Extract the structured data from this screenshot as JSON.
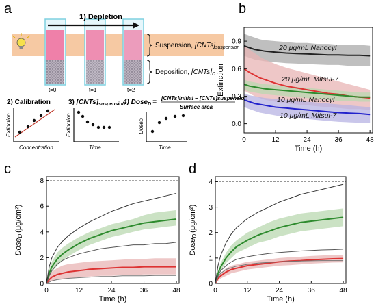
{
  "panels": {
    "a": {
      "letter": "a",
      "depletion_label": "1) Depletion",
      "suspension_label": "Suspension, ",
      "suspension_term": "[CNTs]",
      "suspension_sub": "suspension",
      "deposition_label": "Deposition, ",
      "deposition_term": "[CNTs]",
      "deposition_sub": "D",
      "times": [
        "t=0",
        "t=1",
        "t=2"
      ],
      "calibration_title": "2) Calibration",
      "calibration_ylabel": "Extinction",
      "calibration_xlabel": "Concentration",
      "suspension_plot_prefix": "3) ",
      "suspension_plot_term": "[CNTs]",
      "suspension_plot_sub": "suspension",
      "suspension_plot_ylabel": "Extinction",
      "suspension_plot_xlabel": "Time",
      "dose_title_prefix": "4) Dose",
      "dose_title_sub": "D",
      "dose_eq": "=",
      "dose_numerator": "[CNTs]initial − [CNTs]suspension",
      "dose_denominator": "Surface area",
      "dose_ylabel": "Dose",
      "dose_ylabel_sub": "D",
      "dose_xlabel": "Time",
      "colors": {
        "band": "#f6c9a3",
        "tube_border": "#7fd0e0",
        "suspension": "#f06b9a",
        "deposit": "#8a8090"
      }
    },
    "b": {
      "letter": "b"
    },
    "c": {
      "letter": "c"
    },
    "d": {
      "letter": "d"
    }
  },
  "chart_data": [
    {
      "panel": "b",
      "type": "line",
      "xlabel": "Time (h)",
      "ylabel": "Extinction",
      "xlim": [
        0,
        49
      ],
      "ylim": [
        -0.1,
        1.05
      ],
      "xticks": [
        0,
        12,
        24,
        36,
        48
      ],
      "yticks": [
        0.0,
        0.3,
        0.6,
        0.9
      ],
      "ytick_labels": [
        "0.0",
        "0.3",
        "0.6",
        "0.9"
      ],
      "series": [
        {
          "name": "20 μg/mL Nanocyl",
          "color": "#222222",
          "band_color": "#a9a9a9",
          "x": [
            0,
            2,
            4,
            6,
            8,
            12,
            16,
            20,
            24,
            28,
            32,
            36,
            40,
            44,
            48
          ],
          "y": [
            0.85,
            0.83,
            0.81,
            0.8,
            0.79,
            0.78,
            0.77,
            0.765,
            0.76,
            0.755,
            0.75,
            0.75,
            0.745,
            0.745,
            0.74
          ],
          "lower": [
            0.74,
            0.72,
            0.7,
            0.69,
            0.68,
            0.67,
            0.66,
            0.655,
            0.65,
            0.645,
            0.64,
            0.64,
            0.63,
            0.63,
            0.63
          ],
          "upper": [
            0.98,
            0.96,
            0.94,
            0.92,
            0.91,
            0.9,
            0.89,
            0.88,
            0.88,
            0.87,
            0.87,
            0.86,
            0.86,
            0.86,
            0.85
          ]
        },
        {
          "name": "20 μg/mL Mitsui-7",
          "color": "#dd3333",
          "band_color": "#e8b4b4",
          "x": [
            0,
            2,
            4,
            6,
            8,
            12,
            16,
            20,
            24,
            28,
            32,
            36,
            40,
            44,
            48
          ],
          "y": [
            0.6,
            0.56,
            0.53,
            0.5,
            0.48,
            0.44,
            0.41,
            0.39,
            0.37,
            0.35,
            0.33,
            0.32,
            0.3,
            0.29,
            0.28
          ],
          "lower": [
            0.36,
            0.33,
            0.3,
            0.28,
            0.26,
            0.24,
            0.22,
            0.21,
            0.2,
            0.19,
            0.18,
            0.17,
            0.16,
            0.16,
            0.15
          ],
          "upper": [
            0.86,
            0.81,
            0.77,
            0.73,
            0.7,
            0.65,
            0.61,
            0.58,
            0.55,
            0.52,
            0.49,
            0.46,
            0.43,
            0.4,
            0.37
          ]
        },
        {
          "name": "10 μg/mL Nanocyl",
          "color": "#2e8b2e",
          "band_color": "#b9d8b0",
          "x": [
            0,
            2,
            4,
            6,
            8,
            12,
            16,
            20,
            24,
            28,
            32,
            36,
            40,
            44,
            48
          ],
          "y": [
            0.43,
            0.41,
            0.4,
            0.39,
            0.38,
            0.37,
            0.36,
            0.35,
            0.34,
            0.33,
            0.32,
            0.31,
            0.3,
            0.29,
            0.29
          ],
          "lower": [
            0.37,
            0.35,
            0.34,
            0.33,
            0.32,
            0.31,
            0.3,
            0.29,
            0.28,
            0.27,
            0.26,
            0.25,
            0.25,
            0.24,
            0.24
          ],
          "upper": [
            0.48,
            0.46,
            0.45,
            0.44,
            0.43,
            0.42,
            0.41,
            0.4,
            0.39,
            0.38,
            0.37,
            0.36,
            0.35,
            0.34,
            0.34
          ]
        },
        {
          "name": "10 μg/mL Mitsui-7",
          "color": "#2222cc",
          "band_color": "#b7b3e3",
          "x": [
            0,
            2,
            4,
            6,
            8,
            12,
            16,
            20,
            24,
            28,
            32,
            36,
            40,
            44,
            48
          ],
          "y": [
            0.26,
            0.24,
            0.22,
            0.21,
            0.2,
            0.18,
            0.17,
            0.16,
            0.15,
            0.14,
            0.13,
            0.12,
            0.115,
            0.11,
            0.1
          ],
          "lower": [
            0.18,
            0.16,
            0.14,
            0.12,
            0.11,
            0.09,
            0.07,
            0.06,
            0.05,
            0.04,
            0.03,
            0.02,
            0.015,
            0.01,
            0.005
          ],
          "upper": [
            0.33,
            0.31,
            0.3,
            0.29,
            0.28,
            0.27,
            0.26,
            0.25,
            0.24,
            0.23,
            0.22,
            0.21,
            0.2,
            0.19,
            0.18
          ]
        }
      ]
    },
    {
      "panel": "c",
      "type": "line",
      "xlabel": "Time (h)",
      "ylabel": "Dose",
      "ylabel_sub": "D",
      "ylabel_unit": "(μg/cm²)",
      "xlim": [
        0,
        49
      ],
      "ylim": [
        0,
        8.3
      ],
      "xticks": [
        0,
        12,
        24,
        36,
        48
      ],
      "yticks": [
        0,
        2,
        4,
        6,
        8
      ],
      "dashed_y": 8,
      "series": [
        {
          "color": "#2e8b2e",
          "band_color": "#b9d8b0",
          "x": [
            0,
            1,
            2,
            4,
            6,
            8,
            12,
            16,
            20,
            24,
            28,
            32,
            36,
            40,
            44,
            48
          ],
          "y": [
            0,
            0.8,
            1.3,
            1.9,
            2.3,
            2.6,
            3.1,
            3.5,
            3.8,
            4.1,
            4.3,
            4.5,
            4.7,
            4.8,
            4.9,
            5.0
          ],
          "lower": [
            0,
            0.5,
            0.9,
            1.4,
            1.8,
            2.1,
            2.6,
            3.0,
            3.3,
            3.6,
            3.8,
            4.0,
            4.2,
            4.3,
            4.4,
            4.5
          ],
          "upper": [
            0,
            1.1,
            1.7,
            2.4,
            2.8,
            3.1,
            3.6,
            4.0,
            4.3,
            4.6,
            4.8,
            5.0,
            5.3,
            5.5,
            5.6,
            5.7
          ]
        },
        {
          "color": "#dd3333",
          "band_color": "#e8b4b4",
          "x": [
            0,
            1,
            2,
            4,
            6,
            8,
            12,
            16,
            20,
            24,
            28,
            32,
            36,
            40,
            44,
            48
          ],
          "y": [
            0,
            0.3,
            0.5,
            0.7,
            0.8,
            0.9,
            1.0,
            1.1,
            1.15,
            1.2,
            1.25,
            1.25,
            1.3,
            1.3,
            1.3,
            1.3
          ],
          "lower": [
            0,
            0.1,
            0.2,
            0.3,
            0.35,
            0.4,
            0.5,
            0.55,
            0.6,
            0.6,
            0.65,
            0.65,
            0.7,
            0.7,
            0.7,
            0.7
          ],
          "upper": [
            0,
            0.6,
            0.9,
            1.2,
            1.4,
            1.5,
            1.6,
            1.7,
            1.75,
            1.8,
            1.85,
            1.9,
            1.9,
            1.95,
            1.95,
            1.95
          ]
        },
        {
          "color": "#333333",
          "x": [
            0,
            1,
            2,
            4,
            6,
            8,
            12,
            16,
            20,
            24,
            28,
            32,
            36,
            40,
            44,
            48
          ],
          "y": [
            0,
            1.3,
            2.0,
            2.8,
            3.3,
            3.7,
            4.3,
            4.8,
            5.2,
            5.6,
            5.9,
            6.2,
            6.4,
            6.6,
            6.8,
            7.0
          ]
        },
        {
          "color": "#555555",
          "x": [
            0,
            1,
            2,
            4,
            6,
            8,
            12,
            16,
            20,
            24,
            28,
            32,
            36,
            40,
            44,
            48
          ],
          "y": [
            0,
            0.6,
            1.0,
            1.5,
            1.8,
            2.0,
            2.3,
            2.5,
            2.7,
            2.8,
            2.9,
            3.0,
            3.0,
            3.1,
            3.1,
            3.2
          ]
        },
        {
          "color": "#777777",
          "x": [
            0,
            1,
            2,
            4,
            6,
            8,
            12,
            16,
            20,
            24,
            28,
            32,
            36,
            40,
            44,
            48
          ],
          "y": [
            0,
            0.1,
            0.2,
            0.3,
            0.35,
            0.4,
            0.45,
            0.5,
            0.55,
            0.55,
            0.6,
            0.6,
            0.6,
            0.62,
            0.62,
            0.62
          ]
        }
      ]
    },
    {
      "panel": "d",
      "type": "line",
      "xlabel": "Time (h)",
      "ylabel": "Dose",
      "ylabel_sub": "D",
      "ylabel_unit": "(μg/cm²)",
      "xlim": [
        0,
        49
      ],
      "ylim": [
        0,
        4.2
      ],
      "xticks": [
        0,
        12,
        24,
        36,
        48
      ],
      "yticks": [
        0,
        1,
        2,
        3,
        4
      ],
      "dashed_y": 4,
      "series": [
        {
          "color": "#2e8b2e",
          "band_color": "#b9d8b0",
          "x": [
            0,
            1,
            2,
            4,
            6,
            8,
            12,
            16,
            20,
            24,
            28,
            32,
            36,
            40,
            44,
            48
          ],
          "y": [
            0,
            0.4,
            0.65,
            1.0,
            1.25,
            1.45,
            1.7,
            1.9,
            2.05,
            2.2,
            2.3,
            2.4,
            2.45,
            2.5,
            2.55,
            2.6
          ],
          "lower": [
            0,
            0.3,
            0.5,
            0.8,
            1.0,
            1.2,
            1.4,
            1.6,
            1.7,
            1.85,
            1.95,
            2.05,
            2.1,
            2.15,
            2.2,
            2.25
          ],
          "upper": [
            0,
            0.5,
            0.8,
            1.2,
            1.5,
            1.7,
            2.0,
            2.2,
            2.4,
            2.55,
            2.65,
            2.75,
            2.8,
            2.85,
            2.9,
            2.95
          ]
        },
        {
          "color": "#dd3333",
          "band_color": "#e8b4b4",
          "x": [
            0,
            1,
            2,
            4,
            6,
            8,
            12,
            16,
            20,
            24,
            28,
            32,
            36,
            40,
            44,
            48
          ],
          "y": [
            0,
            0.2,
            0.3,
            0.45,
            0.55,
            0.6,
            0.7,
            0.75,
            0.8,
            0.85,
            0.88,
            0.9,
            0.93,
            0.95,
            0.97,
            0.98
          ],
          "lower": [
            0,
            0.1,
            0.2,
            0.3,
            0.4,
            0.45,
            0.55,
            0.6,
            0.65,
            0.7,
            0.72,
            0.75,
            0.78,
            0.8,
            0.82,
            0.83
          ],
          "upper": [
            0,
            0.3,
            0.4,
            0.6,
            0.7,
            0.75,
            0.85,
            0.9,
            0.95,
            1.0,
            1.03,
            1.05,
            1.08,
            1.1,
            1.12,
            1.13
          ]
        },
        {
          "color": "#333333",
          "x": [
            0,
            1,
            2,
            4,
            6,
            8,
            12,
            16,
            20,
            24,
            28,
            32,
            36,
            40,
            44,
            48
          ],
          "y": [
            0,
            0.7,
            1.1,
            1.6,
            1.95,
            2.2,
            2.55,
            2.8,
            3.0,
            3.2,
            3.35,
            3.5,
            3.6,
            3.7,
            3.8,
            3.9
          ]
        },
        {
          "color": "#555555",
          "x": [
            0,
            1,
            2,
            4,
            6,
            8,
            12,
            16,
            20,
            24,
            28,
            32,
            36,
            40,
            44,
            48
          ],
          "y": [
            0,
            0.3,
            0.5,
            0.7,
            0.85,
            0.95,
            1.05,
            1.12,
            1.18,
            1.22,
            1.25,
            1.28,
            1.3,
            1.32,
            1.33,
            1.35
          ]
        },
        {
          "color": "#777777",
          "x": [
            0,
            1,
            2,
            4,
            6,
            8,
            12,
            16,
            20,
            24,
            28,
            32,
            36,
            40,
            44,
            48
          ],
          "y": [
            0,
            0.25,
            0.4,
            0.55,
            0.62,
            0.68,
            0.75,
            0.8,
            0.83,
            0.85,
            0.87,
            0.88,
            0.89,
            0.9,
            0.9,
            0.9
          ]
        }
      ]
    }
  ]
}
